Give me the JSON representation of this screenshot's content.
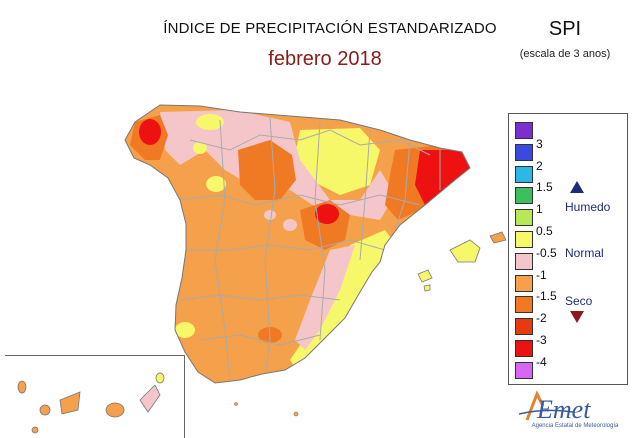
{
  "header": {
    "title": "ÍNDICE DE PRECIPITACIÓN ESTANDARIZADO",
    "subtitle": "febrero 2018",
    "index_name": "SPI",
    "scale_note": "(escala de 3 anos)"
  },
  "legend": {
    "classes": [
      {
        "label": "3",
        "color": "#7a2fd0"
      },
      {
        "label": "2",
        "color": "#3a4ae0"
      },
      {
        "label": "1.5",
        "color": "#2fb6e8"
      },
      {
        "label": "1",
        "color": "#3cbf5c"
      },
      {
        "label": "0.5",
        "color": "#b6e85a"
      },
      {
        "label": "-0.5",
        "color": "#f7f76a"
      },
      {
        "label": "-1",
        "color": "#f5c6c9"
      },
      {
        "label": "-1.5",
        "color": "#f5a04a"
      },
      {
        "label": "-2",
        "color": "#f07a24"
      },
      {
        "label": "-3",
        "color": "#e83a12"
      },
      {
        "label": "-4",
        "color": "#ee1111"
      },
      {
        "label": "",
        "color": "#d866f2"
      }
    ],
    "categories": {
      "humid": "Humedo",
      "normal": "Normal",
      "dry": "Seco"
    },
    "humid_marker_color": "#1f2a7a",
    "dry_marker_color": "#8b1a1a"
  },
  "credit": {
    "logo_text": "AEmet",
    "agency": "Agencia Estatal de Meteorología"
  },
  "map_colors": {
    "base": "#f5a04a",
    "dry2": "#f07a24",
    "dry3": "#ee1111",
    "normal_low": "#f5c6c9",
    "normal": "#f7f76a",
    "border": "#aaaaaa",
    "coast": "#777777"
  }
}
